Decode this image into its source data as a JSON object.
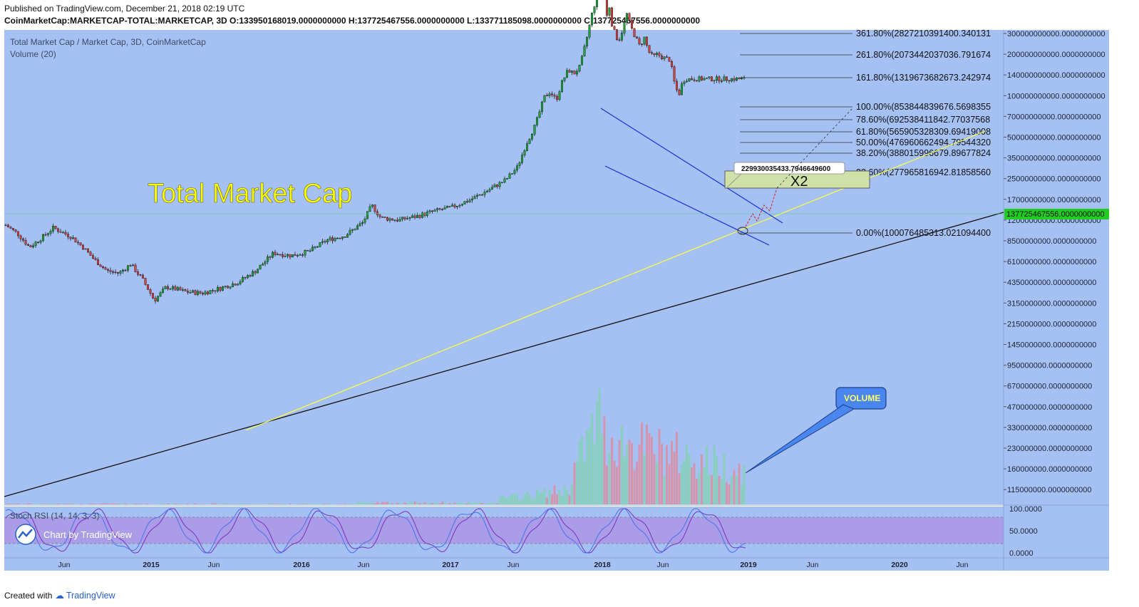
{
  "header": {
    "published": "Published on TradingView.com, December 21, 2018 02:19 UTC",
    "symbol": "CoinMarketCap:MARKETCAP-TOTAL:MARKETCAP, 3D",
    "ohlc": {
      "open": "O:133950168019.0000000000",
      "high": "H:137725467556.0000000000",
      "low": "L:133771185098.0000000000",
      "close": "C:137725467556.0000000000"
    }
  },
  "legend": {
    "main": "Total Market Cap / Market Cap, 3D, CoinMarketCap",
    "volume": "Volume (20)",
    "rsi": "Stoch RSI (14, 14, 3, 3)"
  },
  "watermark": "Chart by TradingView",
  "footer": {
    "created": "Created with",
    "brand": "TradingView"
  },
  "colors": {
    "background": "#a5c0f2",
    "up": "#1aa33a",
    "down": "#d43f3f",
    "channel": "#1a2fd6",
    "support": "#ffff44",
    "trendline": "#111111",
    "price_badge": "#22cc22",
    "rsi_line": "#7b2fbf",
    "rsi_band": "#b07ee0"
  },
  "annotations": {
    "title": "Total Market Cap",
    "target_label": "X2",
    "target_callout": "229930035433.7946649600",
    "volume_callout": "VOLUME"
  },
  "chart_data": {
    "type": "candlestick",
    "scale": "log",
    "timeframe": "3D",
    "x_ticks": [
      "Jun",
      "2015",
      "Jun",
      "2016",
      "Jun",
      "2017",
      "Jun",
      "2018",
      "Jun",
      "2019",
      "Jun",
      "2020",
      "Jun"
    ],
    "y_ticks": [
      "300000000000.0000000000",
      "200000000000.0000000000",
      "140000000000.0000000000",
      "100000000000.0000000000",
      "70000000000.0000000000",
      "50000000000.0000000000",
      "35000000000.0000000000",
      "25000000000.0000000000",
      "17000000000.0000000000",
      "12000000000.0000000000",
      "8500000000.0000000000",
      "6100000000.0000000000",
      "4350000000.0000000000",
      "3150000000.0000000000",
      "2150000000.0000000000",
      "1450000000.0000000000",
      "950000000.0000000000",
      "670000000.0000000000",
      "470000000.0000000000",
      "330000000.0000000000",
      "230000000.0000000000",
      "160000000.0000000000",
      "115000000.0000000000"
    ],
    "last_price": "137725467556.0000000000",
    "fib_levels": [
      {
        "pct": "361.80%",
        "value": "282721039140.0.340131",
        "label": "361.80%(2827210391400.340131"
      },
      {
        "pct": "261.80%",
        "label": "261.80%(2073442037036.791674"
      },
      {
        "pct": "161.80%",
        "label": "161.80%(1319673682673.242974"
      },
      {
        "pct": "100.00%",
        "label": "100.00%(853844839676.5698355"
      },
      {
        "pct": "78.60%",
        "label": "78.60%(692538411842.77037568"
      },
      {
        "pct": "61.80%",
        "label": "61.80%(565905328309.69419008"
      },
      {
        "pct": "50.00%",
        "label": "50.00%(476960662494.79544320"
      },
      {
        "pct": "38.20%",
        "label": "38.20%(388015996679.89677824"
      },
      {
        "pct": "23.60%",
        "label": "23.60%(277965816942.81858560"
      },
      {
        "pct": "0.00%",
        "label": "0.00%(100076485313.021094400"
      }
    ],
    "rsi_ticks": [
      "100.0000",
      "50.0000",
      "0.0000"
    ],
    "price_path": [
      [
        0,
        11000
      ],
      [
        0.02,
        9500
      ],
      [
        0.04,
        7500
      ],
      [
        0.06,
        8800
      ],
      [
        0.08,
        10500
      ],
      [
        0.11,
        9000
      ],
      [
        0.13,
        7500
      ],
      [
        0.15,
        6000
      ],
      [
        0.17,
        5000
      ],
      [
        0.19,
        4800
      ],
      [
        0.21,
        5600
      ],
      [
        0.23,
        4300
      ],
      [
        0.25,
        3000
      ],
      [
        0.27,
        3800
      ],
      [
        0.3,
        3500
      ],
      [
        0.33,
        3400
      ],
      [
        0.36,
        3700
      ],
      [
        0.39,
        4100
      ],
      [
        0.42,
        5000
      ],
      [
        0.45,
        6800
      ],
      [
        0.48,
        6500
      ],
      [
        0.51,
        7000
      ],
      [
        0.54,
        8500
      ],
      [
        0.57,
        9200
      ],
      [
        0.6,
        11500
      ],
      [
        0.615,
        15500
      ],
      [
        0.63,
        12500
      ],
      [
        0.66,
        12000
      ],
      [
        0.69,
        12800
      ],
      [
        0.72,
        14000
      ],
      [
        0.75,
        15000
      ],
      [
        0.78,
        17000
      ],
      [
        0.81,
        20000
      ],
      [
        0.84,
        24000
      ],
      [
        0.86,
        30000
      ],
      [
        0.875,
        45000
      ],
      [
        0.89,
        62000
      ],
      [
        0.905,
        100000
      ],
      [
        0.915,
        110000
      ],
      [
        0.925,
        95000
      ],
      [
        0.935,
        130000
      ],
      [
        0.945,
        160000
      ],
      [
        0.955,
        150000
      ],
      [
        0.965,
        170000
      ],
      [
        0.975,
        260000
      ],
      [
        0.985,
        420000
      ],
      [
        0.995,
        600000
      ],
      [
        1.0,
        780000
      ]
    ],
    "price_path_2018": [
      [
        0,
        780000
      ],
      [
        0.02,
        600000
      ],
      [
        0.04,
        400000
      ],
      [
        0.06,
        480000
      ],
      [
        0.08,
        330000
      ],
      [
        0.1,
        300000
      ],
      [
        0.12,
        260000
      ],
      [
        0.15,
        320000
      ],
      [
        0.18,
        420000
      ],
      [
        0.21,
        330000
      ],
      [
        0.24,
        280000
      ],
      [
        0.27,
        240000
      ],
      [
        0.3,
        280000
      ],
      [
        0.33,
        220000
      ],
      [
        0.36,
        200000
      ],
      [
        0.39,
        210000
      ],
      [
        0.42,
        200000
      ],
      [
        0.45,
        195000
      ],
      [
        0.48,
        190000
      ],
      [
        0.5,
        140000
      ],
      [
        0.52,
        115000
      ],
      [
        0.54,
        105000
      ],
      [
        0.56,
        125000
      ],
      [
        0.58,
        137000
      ]
    ]
  }
}
